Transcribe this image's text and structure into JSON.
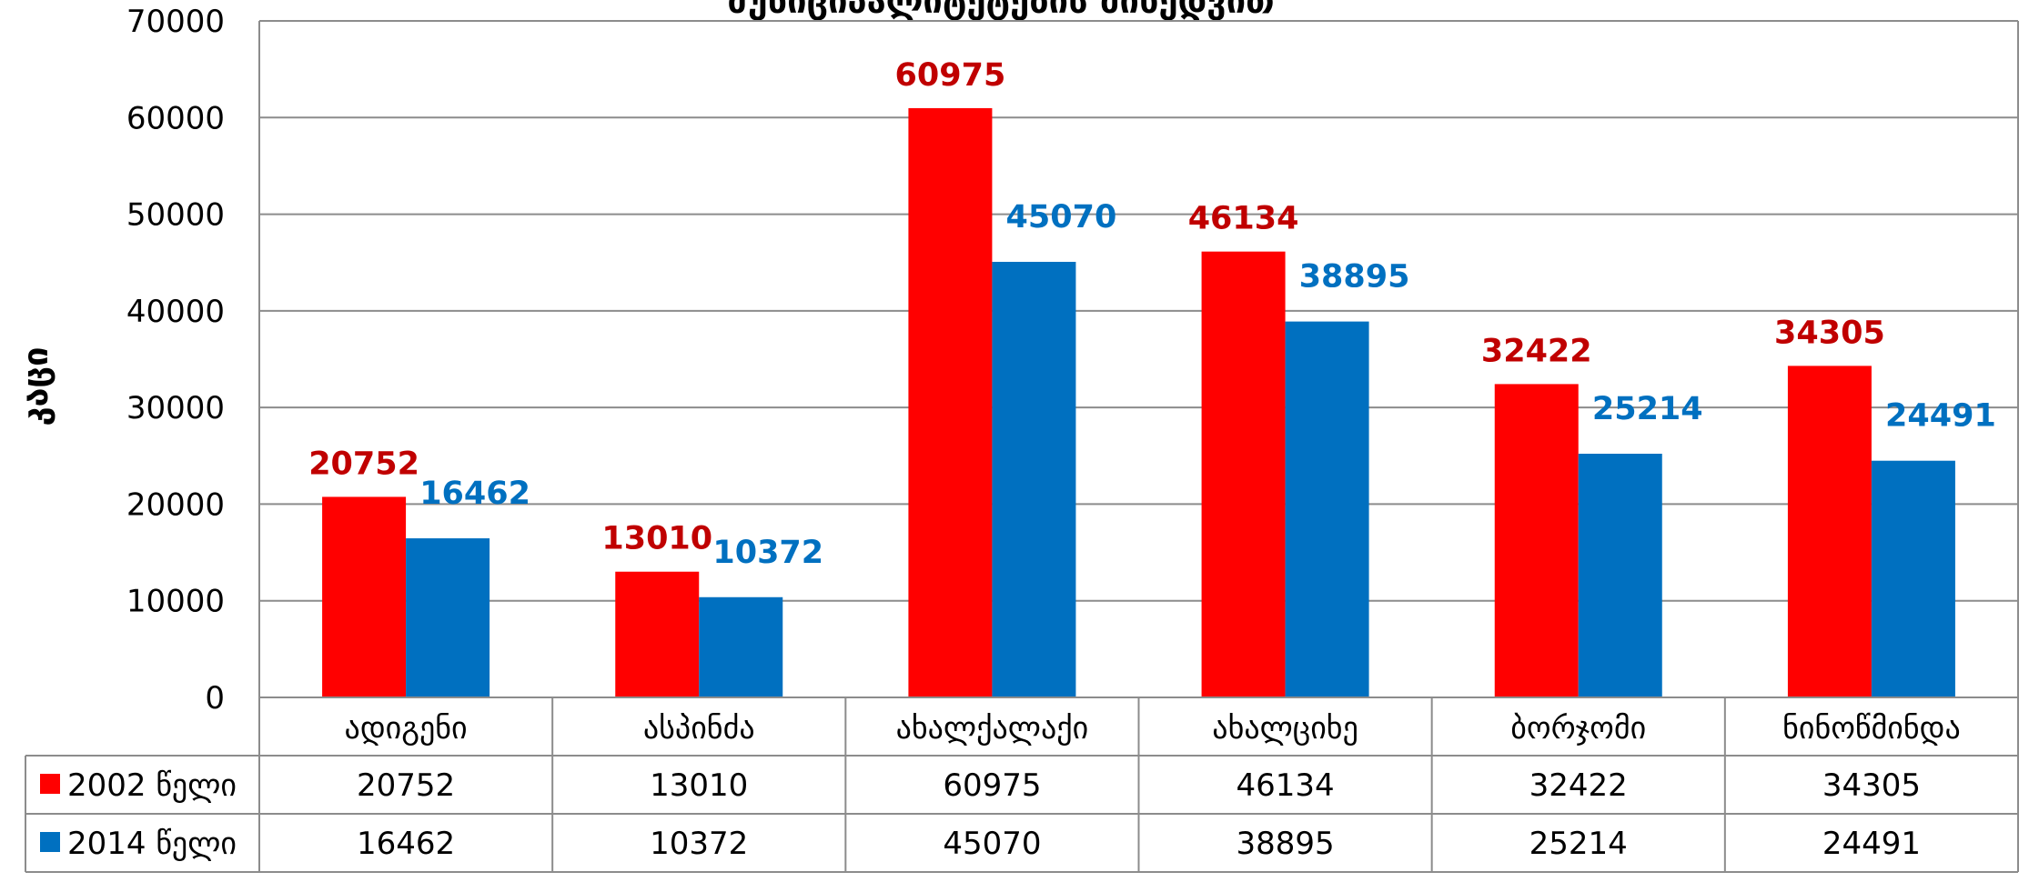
{
  "chart_data": {
    "type": "bar",
    "title": "მუნიციპალიტეტების მიხედვით",
    "ylabel": "კაცი",
    "xlabel": "",
    "ylim": [
      0,
      70000
    ],
    "yticks": [
      0,
      10000,
      20000,
      30000,
      40000,
      50000,
      60000,
      70000
    ],
    "categories": [
      "ადიგენი",
      "ასპინძა",
      "ახალქალაქი",
      "ახალციხე",
      "ბორჯომი",
      "ნინოწმინდა"
    ],
    "series": [
      {
        "name": "2002 წელი",
        "color": "#ff0000",
        "label_color": "#c00000",
        "values": [
          20752,
          13010,
          60975,
          46134,
          32422,
          34305
        ]
      },
      {
        "name": "2014 წელი",
        "color": "#0070c0",
        "label_color": "#0070c0",
        "values": [
          16462,
          10372,
          45070,
          38895,
          25214,
          24491
        ]
      }
    ],
    "grid": true,
    "legend": "data-table",
    "data_table": true
  }
}
